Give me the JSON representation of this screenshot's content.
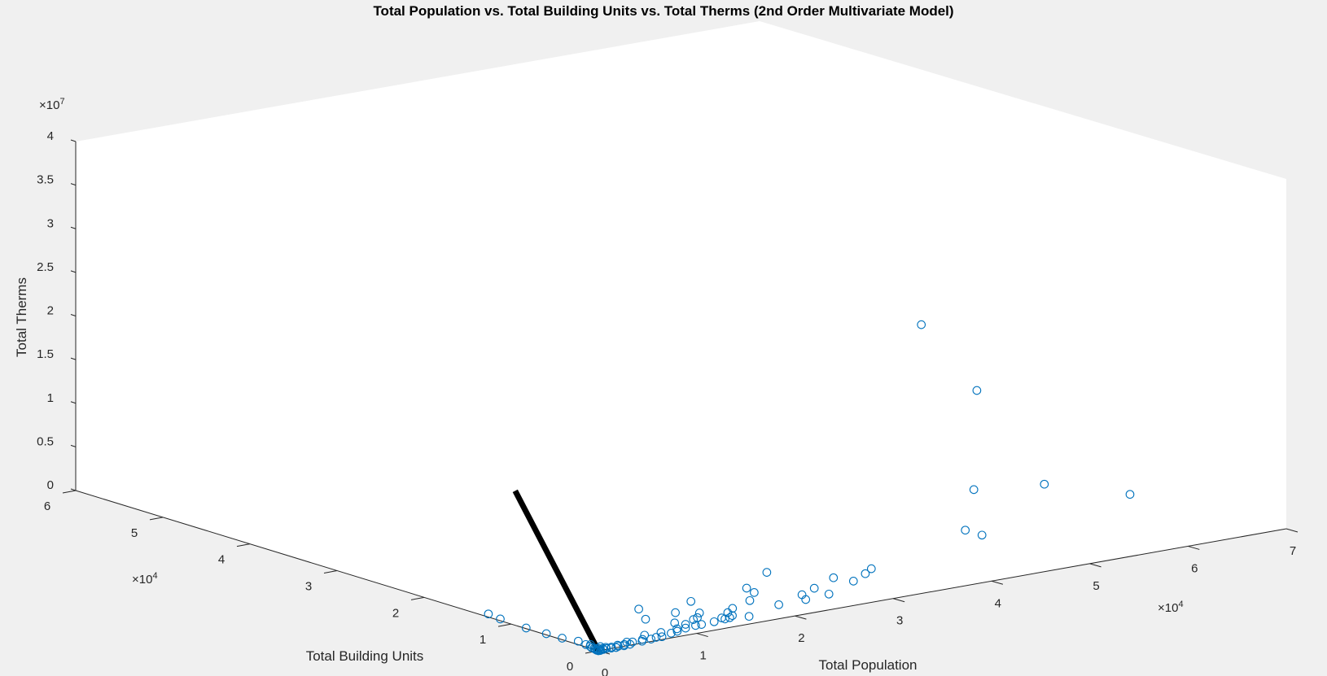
{
  "chart_data": {
    "type": "scatter",
    "subtype": "3d-scatter-with-fit-line",
    "title": "Total Population vs. Total Building Units vs. Total Therms (2nd Order Multivariate Model)",
    "xlabel": "Total Population",
    "ylabel": "Total Building Units",
    "zlabel": "Total Therms",
    "x_exponent": "4",
    "y_exponent": "4",
    "z_exponent": "7",
    "xlim": [
      0,
      7
    ],
    "ylim": [
      0,
      6
    ],
    "zlim": [
      0,
      4
    ],
    "x_ticks": [
      "0",
      "1",
      "2",
      "3",
      "4",
      "5",
      "6",
      "7"
    ],
    "y_ticks": [
      "0",
      "1",
      "2",
      "3",
      "4",
      "5",
      "6"
    ],
    "z_ticks": [
      "0",
      "0.5",
      "1",
      "1.5",
      "2",
      "2.5",
      "3",
      "3.5",
      "4"
    ],
    "marker_color": "#0072bd",
    "fit_line_color": "#000000",
    "grid": false,
    "series": [
      {
        "name": "",
        "marker": "open-circle",
        "points": [
          [
            3.49,
            0.23,
            2.97
          ],
          [
            4.17,
            0.36,
            2.04
          ],
          [
            4.14,
            0.36,
            0.91
          ],
          [
            4.91,
            0.42,
            0.8
          ],
          [
            6.11,
            0.79,
            0.33
          ],
          [
            2.99,
            0.24,
            0.27
          ],
          [
            2.92,
            0.23,
            0.23
          ],
          [
            2.87,
            0.31,
            0.13
          ],
          [
            4.63,
            0.82,
            0.15
          ],
          [
            4.7,
            1.09,
            0.11
          ],
          [
            2.55,
            0.23,
            0.07
          ],
          [
            2.34,
            0.26,
            0.04
          ],
          [
            2.56,
            0.41,
            0.08
          ],
          [
            2.04,
            0.23,
            0.05
          ],
          [
            2.4,
            0.37,
            0.05
          ],
          [
            2.96,
            0.64,
            0.05
          ],
          [
            1.64,
            0.12,
            0.03
          ],
          [
            2.1,
            0.58,
            0.07
          ],
          [
            1.94,
            0.45,
            0.05
          ],
          [
            2.2,
            0.78,
            0.04
          ],
          [
            1.47,
            0.15,
            0.04
          ],
          [
            2.68,
            1.09,
            0.03
          ],
          [
            1.43,
            0.16,
            0.03
          ],
          [
            1.55,
            0.21,
            0.03
          ],
          [
            1.45,
            0.22,
            0.02
          ],
          [
            1.6,
            0.32,
            0.02
          ],
          [
            1.72,
            0.4,
            0.02
          ],
          [
            1.32,
            0.16,
            0.02
          ],
          [
            1.2,
            0.17,
            0.01
          ],
          [
            1.14,
            0.17,
            0.01
          ],
          [
            1.41,
            0.43,
            0.02
          ],
          [
            1.3,
            0.33,
            0.02
          ],
          [
            1.58,
            0.72,
            0.03
          ],
          [
            1.25,
            0.32,
            0.01
          ],
          [
            1.02,
            0.15,
            0.01
          ],
          [
            1.1,
            0.24,
            0.01
          ],
          [
            0.9,
            0.11,
            0.01
          ],
          [
            0.95,
            0.17,
            0.01
          ],
          [
            1.28,
            0.56,
            0.01
          ],
          [
            1.06,
            0.32,
            0.01
          ],
          [
            0.82,
            0.09,
            0.01
          ],
          [
            0.7,
            0.06,
            0.003
          ],
          [
            0.77,
            0.15,
            0.01
          ],
          [
            0.65,
            0.07,
            0.003
          ],
          [
            0.58,
            0.05,
            0.003
          ],
          [
            0.95,
            0.53,
            0.01
          ],
          [
            1.12,
            0.8,
            0.01
          ],
          [
            0.62,
            0.17,
            0.003
          ],
          [
            0.52,
            0.08,
            0.002
          ],
          [
            0.48,
            0.04,
            0.002
          ],
          [
            0.4,
            0.06,
            0.002
          ],
          [
            0.34,
            0.02,
            0.001
          ],
          [
            0.36,
            0.08,
            0.002
          ],
          [
            0.3,
            0.04,
            0.001
          ],
          [
            0.27,
            0.01,
            0.001
          ],
          [
            0.22,
            0.02,
            0.001
          ],
          [
            0.24,
            0.05,
            0.001
          ],
          [
            0.18,
            0.0,
            0.001
          ],
          [
            0.16,
            0.03,
            0.001
          ],
          [
            0.14,
            0.01,
            0.0
          ],
          [
            0.12,
            0.05,
            0.001
          ],
          [
            0.1,
            0.02,
            0.0
          ],
          [
            0.08,
            0.04,
            0.0
          ],
          [
            0.06,
            0.01,
            0.0
          ],
          [
            0.05,
            0.06,
            0.0
          ],
          [
            0.04,
            0.02,
            0.0
          ],
          [
            0.03,
            0.08,
            0.0
          ],
          [
            0.02,
            0.03,
            0.0
          ],
          [
            0.01,
            0.05,
            0.0
          ],
          [
            0.02,
            0.1,
            0.001
          ],
          [
            0.05,
            0.2,
            0.001
          ],
          [
            0.07,
            0.31,
            0.001
          ],
          [
            0.03,
            0.45,
            0.001
          ],
          [
            0.02,
            0.62,
            0.002
          ],
          [
            0.01,
            0.84,
            0.002
          ],
          [
            0.03,
            1.16,
            0.003
          ],
          [
            0.06,
            1.33,
            0.003
          ],
          [
            0.08,
            0.18,
            0.0
          ],
          [
            0.1,
            0.09,
            0.0
          ],
          [
            0.04,
            0.14,
            0.0
          ],
          [
            0.0,
            0.0,
            0.0
          ],
          [
            0.01,
            0.01,
            0.0
          ],
          [
            0.02,
            0.0,
            0.0
          ],
          [
            0.0,
            0.02,
            0.0
          ]
        ]
      }
    ],
    "fit_line": {
      "start": [
        0.0,
        0.0,
        0.0
      ],
      "end": [
        0.35,
        1.35,
        1.35
      ]
    }
  }
}
